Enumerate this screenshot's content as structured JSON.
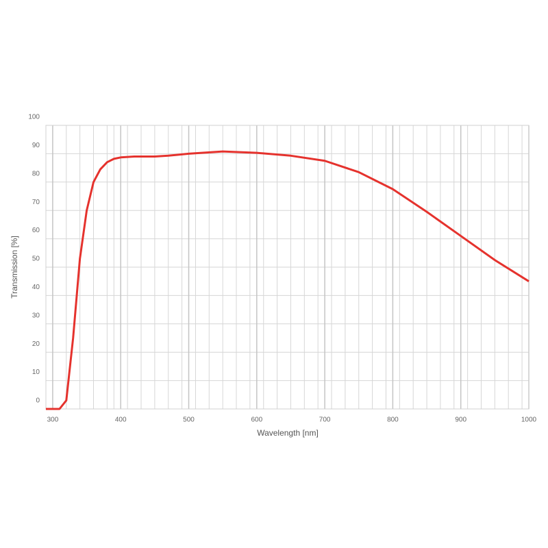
{
  "chart_data": {
    "type": "line",
    "x_label": "Wavelength [nm]",
    "y_label": "Transmission [%]",
    "x": [
      290,
      310,
      320,
      330,
      340,
      350,
      360,
      370,
      380,
      390,
      400,
      420,
      450,
      470,
      500,
      550,
      600,
      650,
      700,
      750,
      800,
      850,
      900,
      950,
      1000
    ],
    "series": [
      {
        "color": "#e5322d",
        "values": [
          0,
          0,
          3,
          25,
          53,
          70,
          80,
          84.5,
          87,
          88.2,
          88.7,
          89,
          89,
          89.3,
          90,
          90.8,
          90.3,
          89.3,
          87.5,
          83.5,
          77.5,
          69.5,
          61,
          52.5,
          45
        ]
      }
    ],
    "xlim": [
      290,
      1000
    ],
    "ylim": [
      0,
      100
    ],
    "xticks": [
      300,
      400,
      500,
      600,
      700,
      800,
      900,
      1000
    ],
    "x_minor_ticks": [
      300,
      320,
      340,
      360,
      380,
      390,
      410,
      430,
      450,
      470,
      490,
      510,
      530,
      550,
      570,
      590,
      610,
      630,
      650,
      670,
      690,
      710,
      730,
      750,
      770,
      790,
      810,
      830,
      850,
      870,
      890,
      910,
      930,
      950,
      970,
      990,
      1000
    ],
    "yticks": [
      0,
      10,
      20,
      30,
      40,
      50,
      60,
      70,
      80,
      90,
      100
    ],
    "grid": true
  }
}
